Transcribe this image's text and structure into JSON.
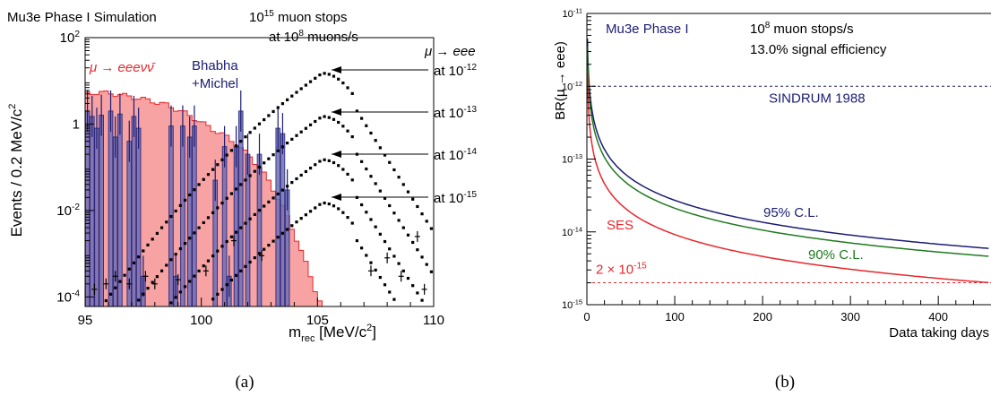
{
  "colors": {
    "axis": "#000000",
    "red": "#e8262b",
    "red_fill": "#f7a3a3",
    "navy": "#1b1c74",
    "navy_fill": "#6f6fb6",
    "green": "#1f7a1f"
  },
  "chart_data": [
    {
      "panel": "a",
      "type": "histogram",
      "caption": "(a)",
      "top_left_label": "Mu3e Phase I Simulation",
      "info_line1_base": "10",
      "info_line1_exp": "15",
      "info_line1_rest": " muon stops",
      "info_line2_pre": "at 10",
      "info_line2_exp": "8",
      "info_line2_rest": " muons/s",
      "xlabel_main": "m",
      "xlabel_sub": "rec",
      "xlabel_units": " [MeV/c",
      "xlabel_exp": "2",
      "xlabel_close": "]",
      "ylabel": "Events / 0.2 MeV/c",
      "ylabel_exp": "2",
      "xlim": [
        95,
        110
      ],
      "ylog": true,
      "ylim": [
        6e-05,
        100
      ],
      "xticks": [
        95,
        100,
        105,
        110
      ],
      "yticks": [
        {
          "value": 100,
          "base": "10",
          "exp": "2"
        },
        {
          "value": 1,
          "base": "1",
          "exp": ""
        },
        {
          "value": 0.01,
          "base": "10",
          "exp": "-2"
        },
        {
          "value": 0.0001,
          "base": "10",
          "exp": "-4"
        }
      ],
      "bg_label": "μ → eeeνν̄",
      "bhabha_label_1": "Bhabha",
      "bhabha_label_2": "+Michel",
      "signal_title": "μ → eee",
      "signal_arrows": [
        {
          "label": "at 10",
          "exp": "-12",
          "peak": 15
        },
        {
          "label": "at 10",
          "exp": "-13",
          "peak": 1.5
        },
        {
          "label": "at 10",
          "exp": "-14",
          "peak": 0.15
        },
        {
          "label": "at 10",
          "exp": "-15",
          "peak": 0.015
        }
      ],
      "signal_peak_mass": 105.2,
      "background_envelope": [
        [
          95.0,
          5.0
        ],
        [
          95.6,
          5.5
        ],
        [
          96.5,
          4.8
        ],
        [
          97.5,
          3.8
        ],
        [
          98.5,
          2.8
        ],
        [
          99.3,
          1.8
        ],
        [
          100.0,
          1.1
        ],
        [
          100.5,
          0.75
        ],
        [
          101.0,
          0.55
        ],
        [
          101.5,
          0.35
        ],
        [
          102.0,
          0.2
        ],
        [
          102.5,
          0.1
        ],
        [
          103.0,
          0.04
        ],
        [
          103.5,
          0.012
        ],
        [
          104.0,
          0.003
        ],
        [
          104.5,
          0.0006
        ],
        [
          104.9,
          0.00015
        ],
        [
          105.2,
          6e-05
        ]
      ],
      "bhabha_bars": [
        [
          95.1,
          2.0
        ],
        [
          95.3,
          1.5
        ],
        [
          95.5,
          0.8
        ],
        [
          95.7,
          1.6
        ],
        [
          96.1,
          2.0
        ],
        [
          96.3,
          0.5
        ],
        [
          96.5,
          1.7
        ],
        [
          96.9,
          0.4
        ],
        [
          97.1,
          1.5
        ],
        [
          97.3,
          0.8
        ],
        [
          97.5,
          0.0003
        ],
        [
          98.7,
          0.9
        ],
        [
          98.9,
          0.0003
        ],
        [
          99.2,
          0.9
        ],
        [
          99.5,
          0.5
        ],
        [
          99.7,
          0.9
        ],
        [
          100.6,
          0.05
        ],
        [
          101.0,
          0.3
        ],
        [
          101.2,
          0.0003
        ],
        [
          101.5,
          0.3
        ],
        [
          101.7,
          2.0
        ],
        [
          102.0,
          0.2
        ],
        [
          102.5,
          0.2
        ],
        [
          103.3,
          0.8
        ],
        [
          103.5,
          0.6
        ],
        [
          103.7,
          0.03
        ]
      ],
      "scatter_points": [
        [
          95.4,
          0.00015
        ],
        [
          95.9,
          0.0002
        ],
        [
          96.3,
          0.0003
        ],
        [
          96.9,
          0.0002
        ],
        [
          97.6,
          0.0003
        ],
        [
          98.0,
          0.0002
        ],
        [
          99.0,
          0.00025
        ],
        [
          100.2,
          0.0004
        ],
        [
          101.4,
          0.002
        ],
        [
          102.6,
          0.0009
        ],
        [
          107.3,
          0.0004
        ],
        [
          108.0,
          0.0008
        ],
        [
          108.6,
          0.0003
        ],
        [
          109.3,
          0.0025
        ],
        [
          109.6,
          0.00015
        ]
      ]
    },
    {
      "panel": "b",
      "type": "line",
      "caption": "(b)",
      "experiment_label": "Mu3e Phase I",
      "rate_base": "10",
      "rate_exp": "8",
      "rate_rest": " muon stops/s",
      "efficiency_label": "13.0% signal efficiency",
      "ylabel": "BR(μ → eee)",
      "xlabel": "Data taking days",
      "xlim": [
        0,
        460
      ],
      "ylog": true,
      "ylim": [
        1e-15,
        1e-11
      ],
      "xticks": [
        0,
        100,
        200,
        300,
        400
      ],
      "yticks": [
        {
          "value": 1e-11,
          "base": "10",
          "exp": "-11"
        },
        {
          "value": 1e-12,
          "base": "10",
          "exp": "-12"
        },
        {
          "value": 1e-13,
          "base": "10",
          "exp": "-13"
        },
        {
          "value": 1e-14,
          "base": "10",
          "exp": "-14"
        },
        {
          "value": 1e-15,
          "base": "10",
          "exp": "-15"
        }
      ],
      "reference_lines": [
        {
          "value": 1e-12,
          "label": "SINDRUM 1988",
          "color": "#1b1c74"
        },
        {
          "value": 2e-15,
          "label": "2 × 10",
          "exp": "-15",
          "color": "#e8262b"
        }
      ],
      "series": [
        {
          "name": "95% C.L.",
          "color": "#1b1c74",
          "asymptote_day": 460,
          "value_at_asymptote": 5.9e-15
        },
        {
          "name": "90% C.L.",
          "color": "#1f7a1f",
          "asymptote_day": 460,
          "value_at_asymptote": 4.6e-15
        },
        {
          "name": "SES",
          "color": "#e8262b",
          "asymptote_day": 460,
          "value_at_asymptote": 2e-15
        }
      ]
    }
  ]
}
